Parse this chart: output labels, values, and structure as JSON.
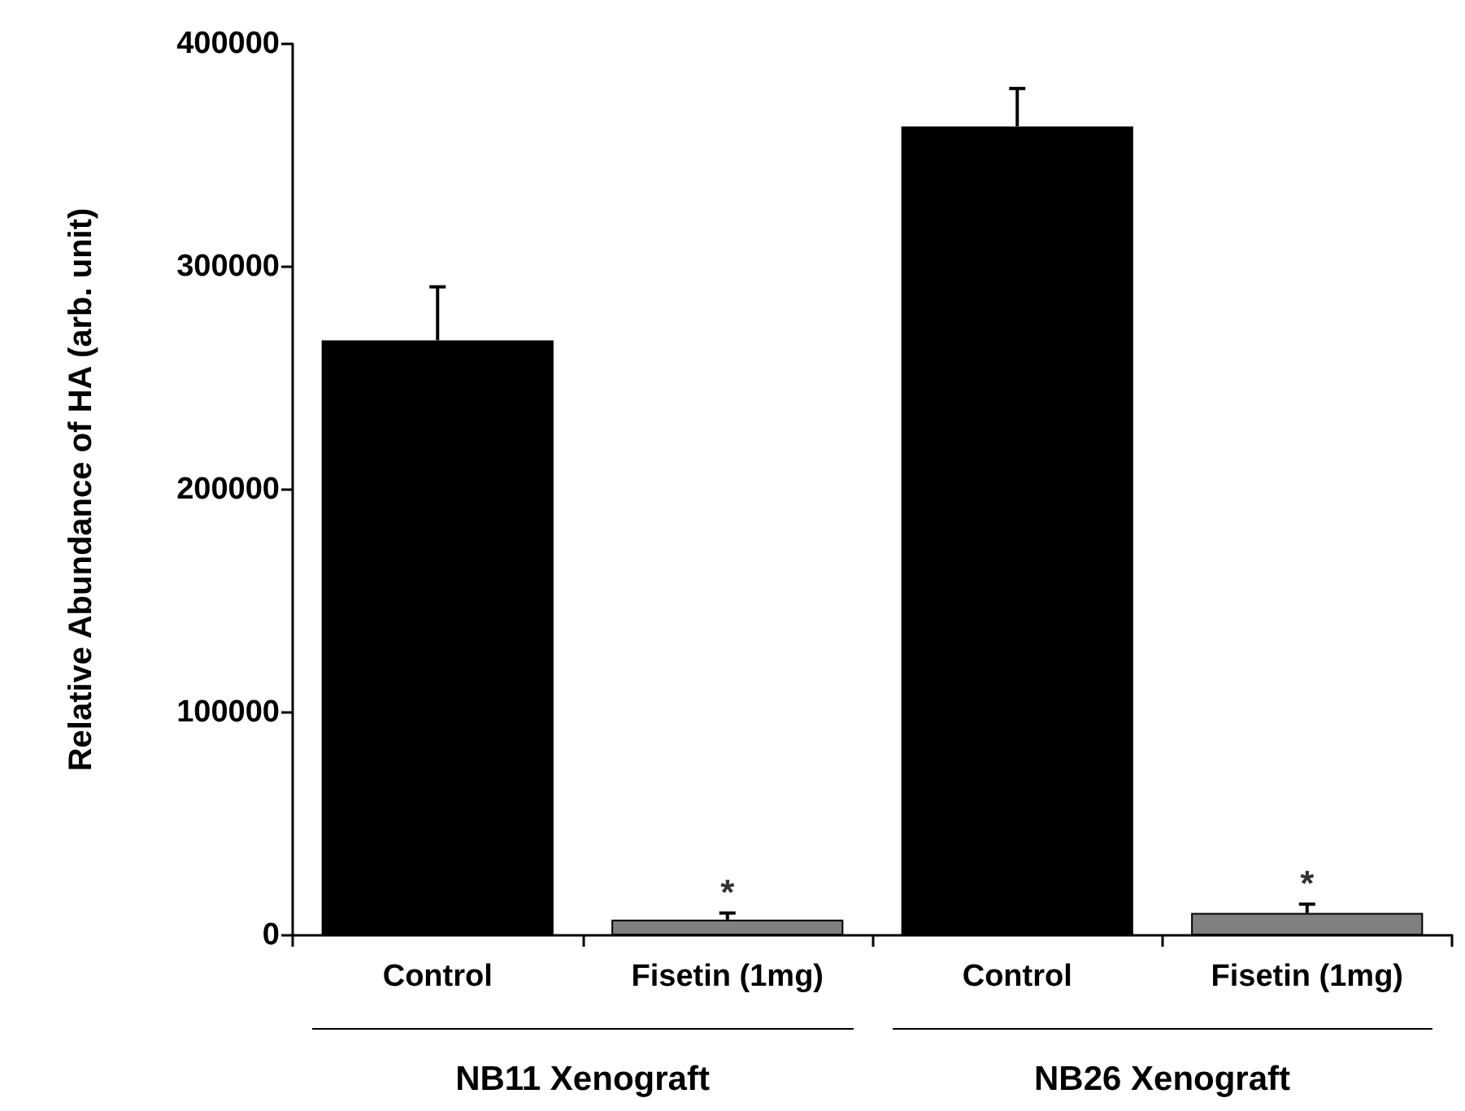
{
  "chart_data": {
    "type": "bar",
    "ylabel": "Relative Abundance of HA (arb. unit)",
    "categories": [
      "Control",
      "Fisetin (1mg)",
      "Control",
      "Fisetin (1mg)"
    ],
    "values": [
      267000,
      7000,
      363000,
      10000
    ],
    "colors": [
      "#000000",
      "#808080",
      "#000000",
      "#808080"
    ],
    "errors": [
      [
        267000,
        291000
      ],
      [
        7000,
        10000
      ],
      [
        363000,
        380000
      ],
      [
        10000,
        14000
      ]
    ],
    "ylim": [
      0,
      400000
    ],
    "yticks": [
      0,
      100000,
      200000,
      300000,
      400000
    ],
    "grid": false,
    "annotations": [
      "*",
      "*",
      "NB11 Xenograft",
      "NB26 Xenograft"
    ]
  }
}
